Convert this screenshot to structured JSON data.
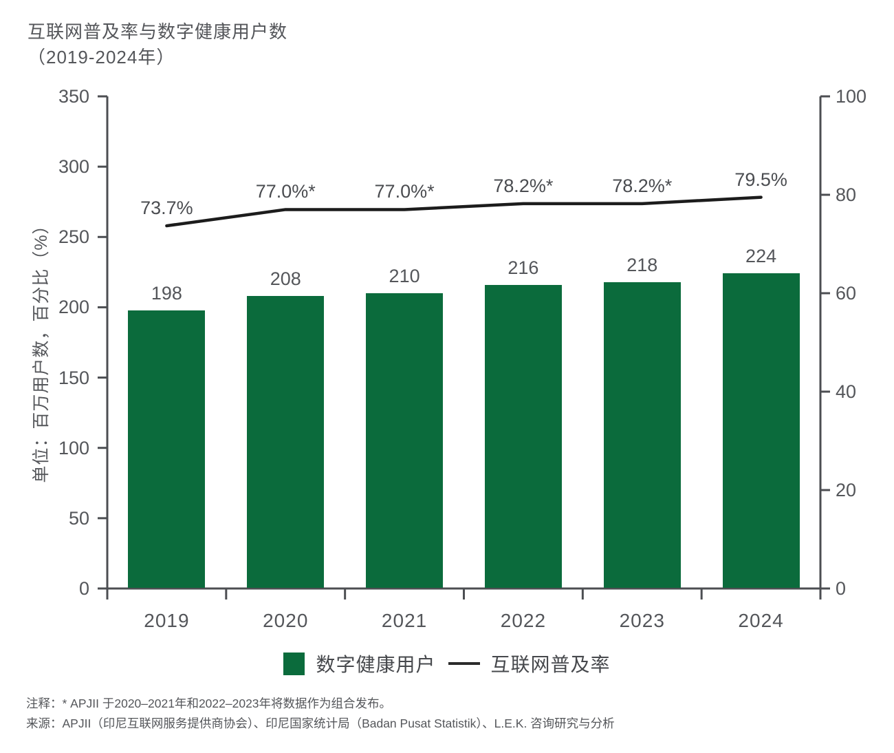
{
  "title": {
    "line1": "互联网普及率与数字健康用户数",
    "line2": "（2019-2024年）"
  },
  "chart_data": {
    "type": "bar",
    "categories": [
      "2019",
      "2020",
      "2021",
      "2022",
      "2023",
      "2024"
    ],
    "series": [
      {
        "name": "数字健康用户",
        "type": "bar",
        "axis": "left",
        "values": [
          198,
          208,
          210,
          216,
          218,
          224
        ],
        "labels": [
          "198",
          "208",
          "210",
          "216",
          "218",
          "224"
        ],
        "color": "#0B6B3C"
      },
      {
        "name": "互联网普及率",
        "type": "line",
        "axis": "right",
        "values": [
          73.7,
          77.0,
          77.0,
          78.2,
          78.2,
          79.5
        ],
        "labels": [
          "73.7%",
          "77.0%*",
          "77.0%*",
          "78.2%*",
          "78.2%*",
          "79.5%"
        ],
        "color": "#1C1C1C"
      }
    ],
    "left_axis": {
      "label": "单位：百万用户数，百分比（%）",
      "min": 0,
      "max": 350,
      "step": 50,
      "ticks": [
        350,
        300,
        250,
        200,
        150,
        100,
        50,
        0
      ]
    },
    "right_axis": {
      "min": 0,
      "max": 100,
      "step": 20,
      "ticks": [
        100,
        80,
        60,
        40,
        20,
        0
      ]
    },
    "legend": [
      {
        "label": "数字健康用户",
        "swatch": "square",
        "color": "#0B6B3C"
      },
      {
        "label": "互联网普及率",
        "swatch": "line",
        "color": "#2B2B2B"
      }
    ],
    "grid": false,
    "legend_position": "bottom"
  },
  "notes": {
    "footnote": "注释：* APJII 于2020–2021年和2022–2023年将数据作为组合发布。",
    "source": "来源：APJII（印尼互联网服务提供商协会）、印尼国家统计局（Badan Pusat Statistik）、L.E.K. 咨询研究与分析"
  },
  "colors": {
    "bar_green": "#0B6B3C",
    "line_black": "#1C1C1C",
    "text_gray": "#54565A",
    "axis_gray": "#4C4E52"
  }
}
